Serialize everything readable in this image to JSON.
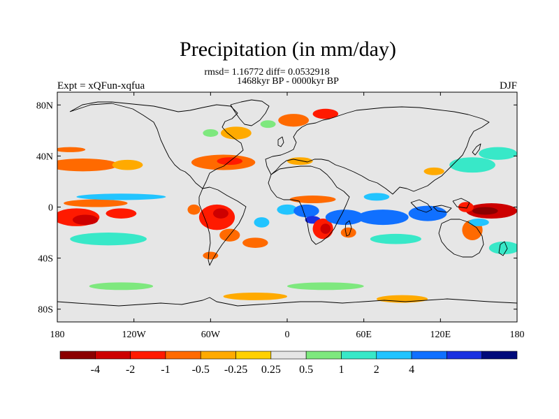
{
  "chart_data": {
    "type": "heatmap",
    "title": "Precipitation (in mm/day)",
    "stats": "rmsd= 1.16772 diff= 0.0532918",
    "subtitle": "1468kyr BP - 0000kyr BP",
    "left_label": "Expt = xQFun-xqfua",
    "right_label": "DJF",
    "xlim": [
      -180,
      180
    ],
    "ylim": [
      -90,
      90
    ],
    "x_ticks": [
      {
        "value": -180,
        "label": "180"
      },
      {
        "value": -120,
        "label": "120W"
      },
      {
        "value": -60,
        "label": "60W"
      },
      {
        "value": 0,
        "label": "0"
      },
      {
        "value": 60,
        "label": "60E"
      },
      {
        "value": 120,
        "label": "120E"
      },
      {
        "value": 180,
        "label": "180"
      }
    ],
    "y_ticks": [
      {
        "value": 80,
        "label": "80N"
      },
      {
        "value": 40,
        "label": "40N"
      },
      {
        "value": 0,
        "label": "0"
      },
      {
        "value": -40,
        "label": "40S"
      },
      {
        "value": -80,
        "label": "80S"
      }
    ],
    "colorbar": {
      "colors": [
        "#8b0000",
        "#cd0000",
        "#ff1a00",
        "#ff6a00",
        "#ffaa00",
        "#ffd000",
        "#e6e6e6",
        "#7ee87e",
        "#38e8c8",
        "#22c4ff",
        "#1070ff",
        "#1a30e0",
        "#000a7a"
      ],
      "labels": [
        {
          "after_box": 1,
          "text": "-4"
        },
        {
          "after_box": 2,
          "text": "-2"
        },
        {
          "after_box": 3,
          "text": "-1"
        },
        {
          "after_box": 4,
          "text": "-0.5"
        },
        {
          "after_box": 5,
          "text": "-0.25"
        },
        {
          "after_box": 6,
          "text": "0.25"
        },
        {
          "after_box": 7,
          "text": "0.5"
        },
        {
          "after_box": 8,
          "text": "1"
        },
        {
          "after_box": 9,
          "text": "2"
        },
        {
          "after_box": 10,
          "text": "4"
        }
      ]
    },
    "background_value": 0,
    "field_regions": [
      {
        "name": "n-pacific-storm-track",
        "lon": -160,
        "lat": 33,
        "rlon": 28,
        "rlat": 5,
        "value": -0.6
      },
      {
        "name": "n-pacific-east",
        "lon": -125,
        "lat": 33,
        "rlon": 12,
        "rlat": 4,
        "value": -0.4
      },
      {
        "name": "n-pacific-band-north",
        "lon": -170,
        "lat": 45,
        "rlon": 12,
        "rlat": 2,
        "value": -0.6
      },
      {
        "name": "n-atlantic-storm-track",
        "lon": -50,
        "lat": 35,
        "rlon": 25,
        "rlat": 6,
        "value": -0.6
      },
      {
        "name": "n-atlantic-core",
        "lon": -45,
        "lat": 36,
        "rlon": 10,
        "rlat": 3,
        "value": -1.2
      },
      {
        "name": "mediterranean",
        "lon": 10,
        "lat": 36,
        "rlon": 10,
        "rlat": 3,
        "value": -0.4
      },
      {
        "name": "n-atlantic-high-lat",
        "lon": -40,
        "lat": 58,
        "rlon": 12,
        "rlat": 5,
        "value": -0.5
      },
      {
        "name": "norwegian-sea",
        "lon": 5,
        "lat": 68,
        "rlon": 12,
        "rlat": 5,
        "value": -0.6
      },
      {
        "name": "barents-sea",
        "lon": 30,
        "lat": 73,
        "rlon": 10,
        "rlat": 4,
        "value": -1.2
      },
      {
        "name": "greenland-sea-wet",
        "lon": -15,
        "lat": 65,
        "rlon": 6,
        "rlat": 3,
        "value": 0.4
      },
      {
        "name": "labrador-wet",
        "lon": -60,
        "lat": 58,
        "rlon": 6,
        "rlat": 3,
        "value": 0.4
      },
      {
        "name": "japan-wet",
        "lon": 145,
        "lat": 33,
        "rlon": 18,
        "rlat": 6,
        "value": 0.8
      },
      {
        "name": "nw-pacific-wet",
        "lon": 165,
        "lat": 42,
        "rlon": 15,
        "rlat": 5,
        "value": 0.7
      },
      {
        "name": "east-asia-dry",
        "lon": 115,
        "lat": 28,
        "rlon": 8,
        "rlat": 3,
        "value": -0.5
      },
      {
        "name": "c-pacific-eq-dry",
        "lon": -165,
        "lat": -8,
        "rlon": 18,
        "rlat": 7,
        "value": -1.5
      },
      {
        "name": "c-pacific-core",
        "lon": -158,
        "lat": -10,
        "rlon": 10,
        "rlat": 4,
        "value": -3
      },
      {
        "name": "e-pacific-dry",
        "lon": -130,
        "lat": -5,
        "rlon": 12,
        "rlat": 4,
        "value": -1.2
      },
      {
        "name": "pacific-eq-north",
        "lon": -150,
        "lat": 3,
        "rlon": 25,
        "rlat": 3,
        "value": -0.6
      },
      {
        "name": "pacific-wet-10n",
        "lon": -130,
        "lat": 8,
        "rlon": 35,
        "rlat": 2.5,
        "value": 1.2
      },
      {
        "name": "s-pacific-wet",
        "lon": -140,
        "lat": -25,
        "rlon": 30,
        "rlat": 5,
        "value": 0.6
      },
      {
        "name": "s-pacific-wet-west",
        "lon": 170,
        "lat": -32,
        "rlon": 12,
        "rlat": 5,
        "value": 0.6
      },
      {
        "name": "amazon-dry",
        "lon": -55,
        "lat": -8,
        "rlon": 14,
        "rlat": 10,
        "value": -1.2
      },
      {
        "name": "amazon-core",
        "lon": -52,
        "lat": -5,
        "rlon": 6,
        "rlat": 4,
        "value": -2.5
      },
      {
        "name": "s-brazil-dry",
        "lon": -45,
        "lat": -22,
        "rlon": 8,
        "rlat": 5,
        "value": -0.8
      },
      {
        "name": "andes-dry",
        "lon": -73,
        "lat": -2,
        "rlon": 5,
        "rlat": 4,
        "value": -0.6
      },
      {
        "name": "s-atlantic-dry",
        "lon": -25,
        "lat": -28,
        "rlon": 10,
        "rlat": 4,
        "value": -0.6
      },
      {
        "name": "argentina-dry",
        "lon": -60,
        "lat": -38,
        "rlon": 6,
        "rlat": 3,
        "value": -0.6
      },
      {
        "name": "s-atlantic-wet",
        "lon": -20,
        "lat": -12,
        "rlon": 6,
        "rlat": 4,
        "value": 1.5
      },
      {
        "name": "gulf-of-guinea-wet",
        "lon": 0,
        "lat": -2,
        "rlon": 8,
        "rlat": 4,
        "value": 1.2
      },
      {
        "name": "congo-wet",
        "lon": 15,
        "lat": -3,
        "rlon": 10,
        "rlat": 5,
        "value": 2.5
      },
      {
        "name": "c-africa-wet",
        "lon": 20,
        "lat": -10,
        "rlon": 6,
        "rlat": 3,
        "value": 5
      },
      {
        "name": "sahel-dry",
        "lon": 20,
        "lat": 6,
        "rlon": 18,
        "rlat": 3,
        "value": -0.8
      },
      {
        "name": "s-africa-dry",
        "lon": 28,
        "lat": -17,
        "rlon": 8,
        "rlat": 8,
        "value": -1.2
      },
      {
        "name": "s-africa-core",
        "lon": 30,
        "lat": -17,
        "rlon": 4,
        "rlat": 4,
        "value": -2.5
      },
      {
        "name": "madagascar-dry",
        "lon": 48,
        "lat": -20,
        "rlon": 6,
        "rlat": 4,
        "value": -0.6
      },
      {
        "name": "w-indian-wet",
        "lon": 45,
        "lat": -8,
        "rlon": 15,
        "rlat": 6,
        "value": 3
      },
      {
        "name": "c-indian-wet",
        "lon": 75,
        "lat": -8,
        "rlon": 20,
        "rlat": 6,
        "value": 2.5
      },
      {
        "name": "indian-wet-north",
        "lon": 70,
        "lat": 8,
        "rlon": 10,
        "rlat": 3,
        "value": 1.2
      },
      {
        "name": "maritime-wet",
        "lon": 110,
        "lat": -5,
        "rlon": 15,
        "rlat": 6,
        "value": 2
      },
      {
        "name": "s-indian-wet",
        "lon": 85,
        "lat": -25,
        "rlon": 20,
        "rlat": 4,
        "value": 0.6
      },
      {
        "name": "w-pacific-dry",
        "lon": 160,
        "lat": -3,
        "rlon": 20,
        "rlat": 6,
        "value": -3
      },
      {
        "name": "w-pacific-core",
        "lon": 155,
        "lat": -3,
        "rlon": 10,
        "rlat": 3,
        "value": -5
      },
      {
        "name": "png-dry",
        "lon": 140,
        "lat": 0,
        "rlon": 6,
        "rlat": 4,
        "value": -1.5
      },
      {
        "name": "australia-dry",
        "lon": 145,
        "lat": -18,
        "rlon": 8,
        "rlat": 8,
        "value": -0.8
      },
      {
        "name": "w-pacific-wet-south",
        "lon": 150,
        "lat": -12,
        "rlon": 8,
        "rlat": 3,
        "value": 1.2
      },
      {
        "name": "southern-ocean-wet-1",
        "lon": -130,
        "lat": -62,
        "rlon": 25,
        "rlat": 3,
        "value": 0.4
      },
      {
        "name": "southern-ocean-wet-2",
        "lon": 30,
        "lat": -62,
        "rlon": 30,
        "rlat": 3,
        "value": 0.4
      },
      {
        "name": "southern-ocean-dry",
        "lon": -25,
        "lat": -70,
        "rlon": 25,
        "rlat": 3,
        "value": -0.4
      },
      {
        "name": "southern-ocean-dry-2",
        "lon": 90,
        "lat": -72,
        "rlon": 20,
        "rlat": 3,
        "value": -0.4
      }
    ]
  }
}
